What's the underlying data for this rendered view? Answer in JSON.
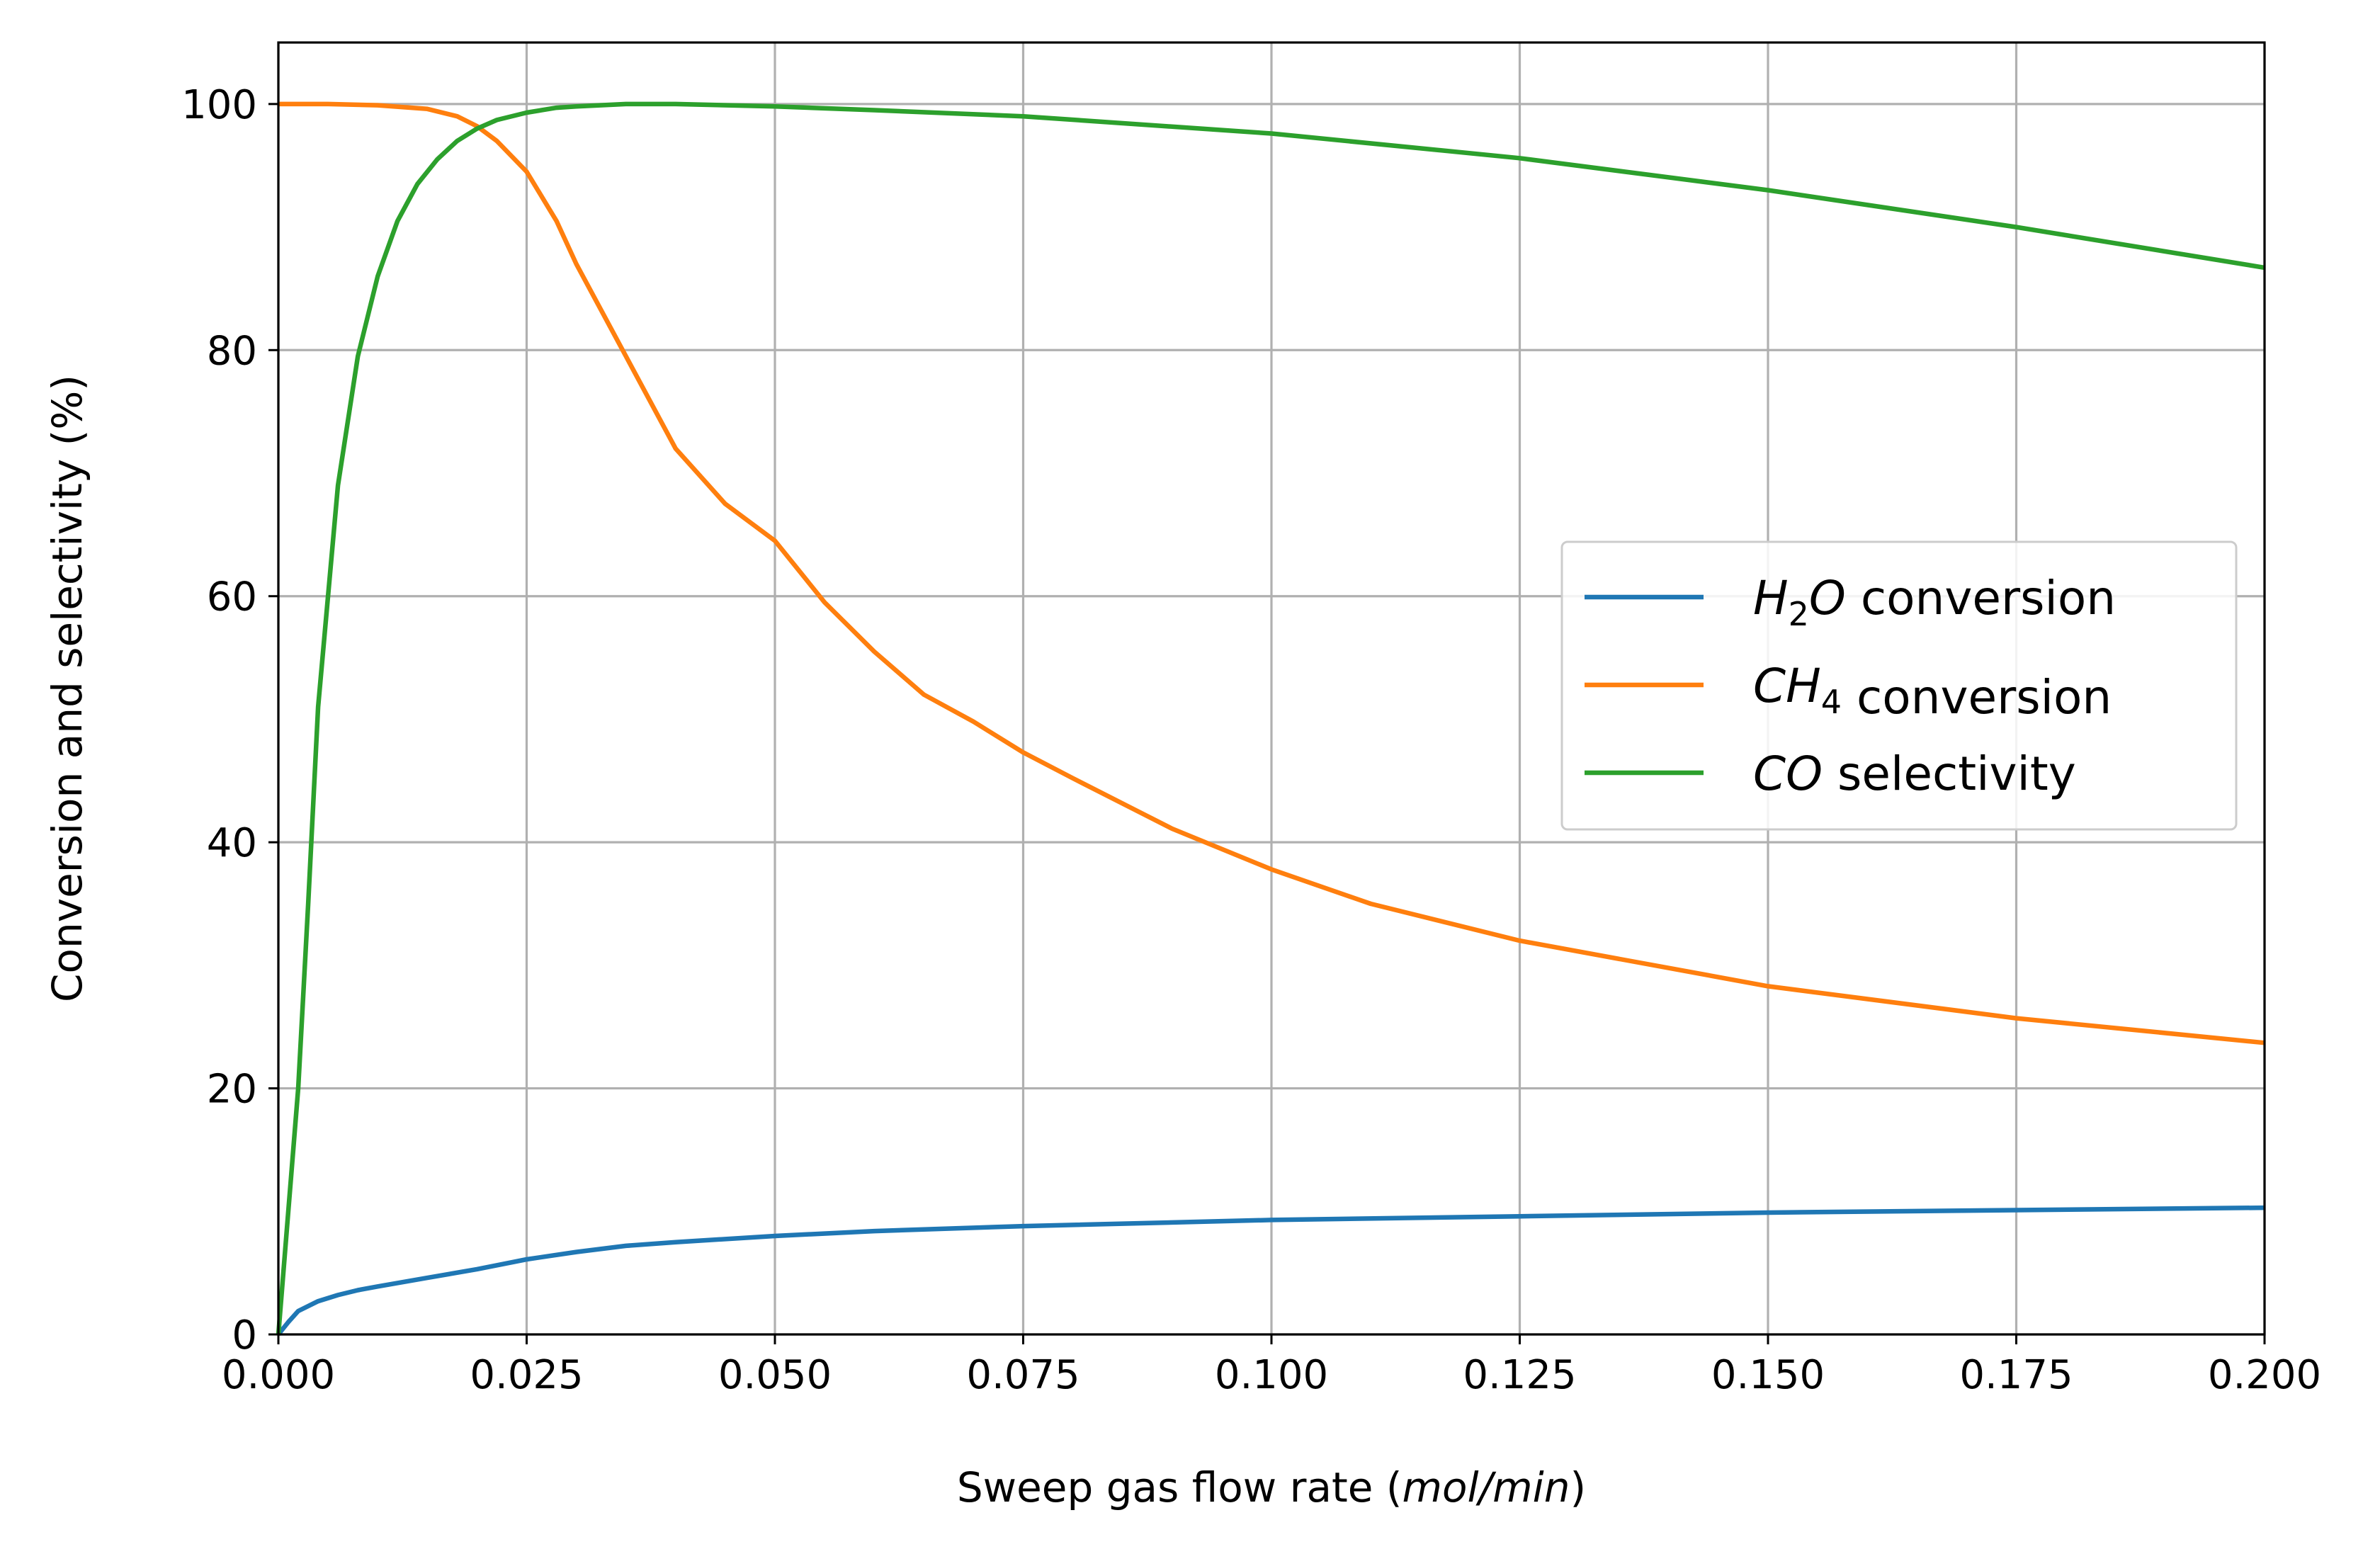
{
  "chart_data": {
    "type": "line",
    "xlabel": {
      "prefix": "Sweep gas flow rate (",
      "unit": "mol/min",
      "suffix": ")"
    },
    "ylabel": "Conversion and selectivity (%)",
    "xlim": [
      0.0,
      0.2
    ],
    "ylim": [
      0,
      105
    ],
    "xticks": [
      0.0,
      0.025,
      0.05,
      0.075,
      0.1,
      0.125,
      0.15,
      0.175,
      0.2
    ],
    "xtick_labels": [
      "0.000",
      "0.025",
      "0.050",
      "0.075",
      "0.100",
      "0.125",
      "0.150",
      "0.175",
      "0.200"
    ],
    "yticks": [
      0,
      20,
      40,
      60,
      80,
      100
    ],
    "ytick_labels": [
      "0",
      "20",
      "40",
      "60",
      "80",
      "100"
    ],
    "grid": true,
    "legend_position": "center-right",
    "series": [
      {
        "name": "H2O conversion",
        "legend": {
          "sym": "H",
          "sub": "2",
          "sym2": "O",
          "rest": " conversion"
        },
        "color": "#1f77b4",
        "x": [
          0.0,
          0.001,
          0.002,
          0.004,
          0.006,
          0.008,
          0.01,
          0.015,
          0.02,
          0.025,
          0.03,
          0.035,
          0.04,
          0.05,
          0.06,
          0.075,
          0.1,
          0.125,
          0.15,
          0.175,
          0.2
        ],
        "y": [
          0,
          1.0,
          1.9,
          2.7,
          3.2,
          3.6,
          3.9,
          4.6,
          5.3,
          6.1,
          6.7,
          7.2,
          7.5,
          8.0,
          8.4,
          8.8,
          9.3,
          9.6,
          9.9,
          10.1,
          10.3
        ]
      },
      {
        "name": "CH4 conversion",
        "legend": {
          "sym": "CH",
          "sub": "4",
          "sym2": "",
          "rest": " conversion"
        },
        "color": "#ff7f0e",
        "x": [
          0.0,
          0.005,
          0.01,
          0.015,
          0.018,
          0.02,
          0.022,
          0.025,
          0.028,
          0.03,
          0.033,
          0.035,
          0.04,
          0.045,
          0.05,
          0.055,
          0.06,
          0.065,
          0.07,
          0.075,
          0.08,
          0.09,
          0.1,
          0.11,
          0.125,
          0.15,
          0.175,
          0.2
        ],
        "y": [
          100,
          100,
          99.9,
          99.6,
          99.0,
          98.2,
          97.0,
          94.5,
          90.5,
          87.0,
          82.5,
          79.5,
          72.0,
          67.5,
          64.5,
          59.5,
          55.5,
          52.0,
          49.8,
          47.3,
          45.2,
          41.1,
          37.8,
          35.0,
          32.0,
          28.3,
          25.7,
          23.7
        ]
      },
      {
        "name": "CO selectivity",
        "legend": {
          "sym": "CO",
          "sub": "",
          "sym2": "",
          "rest": " selectivity"
        },
        "color": "#2ca02c",
        "x": [
          0.0,
          0.001,
          0.002,
          0.003,
          0.004,
          0.005,
          0.006,
          0.008,
          0.01,
          0.012,
          0.014,
          0.016,
          0.018,
          0.02,
          0.022,
          0.025,
          0.028,
          0.03,
          0.035,
          0.04,
          0.05,
          0.06,
          0.075,
          0.1,
          0.125,
          0.15,
          0.175,
          0.2
        ],
        "y": [
          0,
          10.0,
          20.0,
          35.0,
          51.0,
          60.0,
          69.0,
          79.5,
          86.0,
          90.5,
          93.5,
          95.5,
          97.0,
          98.0,
          98.7,
          99.3,
          99.7,
          99.8,
          100.0,
          100.0,
          99.8,
          99.5,
          99.0,
          97.6,
          95.6,
          93.0,
          90.0,
          86.7
        ]
      }
    ]
  }
}
